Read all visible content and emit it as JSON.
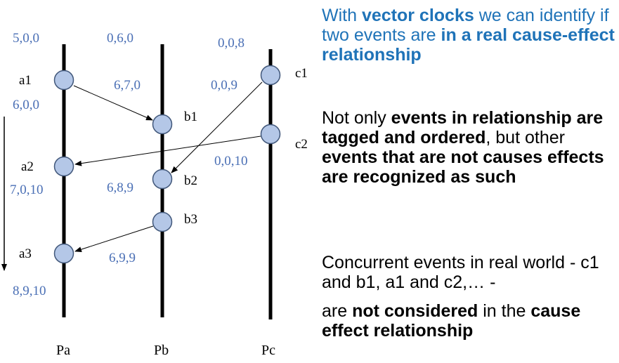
{
  "processes": [
    {
      "id": "Pa",
      "label": "Pa",
      "start_clock": "5,0,0"
    },
    {
      "id": "Pb",
      "label": "Pb",
      "start_clock": "0,6,0"
    },
    {
      "id": "Pc",
      "label": "Pc",
      "start_clock": "0,0,8"
    }
  ],
  "events": [
    {
      "id": "a1",
      "label": "a1",
      "clock": "6,0,0"
    },
    {
      "id": "a2",
      "label": "a2",
      "clock": "7,0,10"
    },
    {
      "id": "a3",
      "label": "a3",
      "clock": "8,9,10"
    },
    {
      "id": "b1",
      "label": "b1",
      "clock": "6,7,0"
    },
    {
      "id": "b2",
      "label": "b2",
      "clock": "6,8,9"
    },
    {
      "id": "b3",
      "label": "b3",
      "clock": "6,9,9"
    },
    {
      "id": "c1",
      "label": "c1",
      "clock": "0,0,9"
    },
    {
      "id": "c2",
      "label": "c2",
      "clock": "0,0,10"
    }
  ],
  "messages": [
    {
      "from": "a1",
      "to": "b1"
    },
    {
      "from": "c1",
      "to": "b2"
    },
    {
      "from": "c2",
      "to": "a2"
    },
    {
      "from": "b3",
      "to": "a3"
    }
  ],
  "text": {
    "p1": {
      "t1": "With ",
      "b1": "vector clocks",
      "t2": " we can identify if two events are ",
      "b2": "in a real cause-effect relationship"
    },
    "p2": {
      "t1": "Not only ",
      "b1": "events in relationship are tagged and ordered",
      "t2": ", but other ",
      "b2": "events that are not causes effects are recognized as such"
    },
    "p3": {
      "t1": "Concurrent events in real world - c1 and b1, a1 and c2,… -"
    },
    "p4": {
      "t1": "are ",
      "b1": "not considered",
      "t2": " in the ",
      "b2": "cause effect relationship"
    }
  }
}
